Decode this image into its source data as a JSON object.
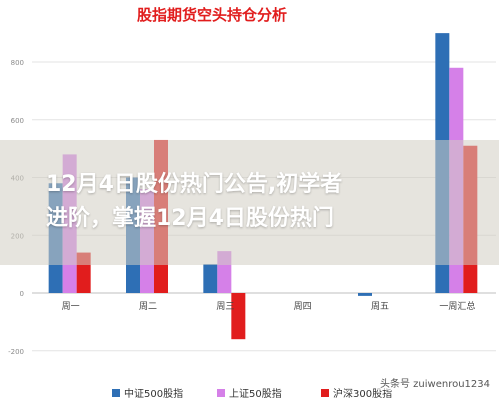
{
  "chart_data": {
    "type": "bar",
    "title": "股指期货空头持仓分析",
    "categories": [
      "周一",
      "周二",
      "周三",
      "周四",
      "周五",
      "一周汇总"
    ],
    "series": [
      {
        "name": "中证500股指",
        "color": "#2e6fb5",
        "values": [
          380,
          400,
          100,
          0,
          -10,
          900
        ]
      },
      {
        "name": "上证50股指",
        "color": "#d580e8",
        "values": [
          480,
          360,
          145,
          0,
          0,
          780
        ]
      },
      {
        "name": "沪深300股指",
        "color": "#e11d1d",
        "values": [
          140,
          530,
          -160,
          0,
          0,
          510
        ]
      }
    ],
    "yticks": [
      -200,
      0,
      200,
      400,
      600,
      800
    ],
    "ylim": [
      -230,
      960
    ],
    "grid": true,
    "legend": "bottom"
  },
  "overlay": {
    "line1": "12月4日股份热门公告,初学者",
    "line2": "进阶，掌握12月4日股份热门"
  },
  "watermark": "头条号 zuiwenrou1234"
}
